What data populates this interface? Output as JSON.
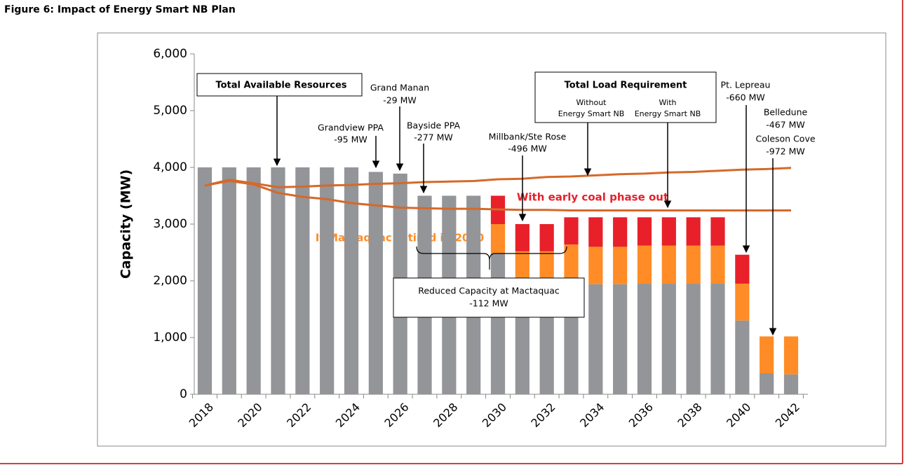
{
  "chart_data": {
    "type": "bar",
    "figure_title": "Figure 6: Impact of Energy Smart NB Plan",
    "y_label": "Capacity  (MW)",
    "categories": [
      "2018",
      null,
      "2020",
      null,
      "2022",
      null,
      "2024",
      null,
      "2026",
      null,
      "2028",
      null,
      "2030",
      null,
      "2032",
      null,
      "2034",
      null,
      "2036",
      null,
      "2038",
      null,
      "2040",
      null,
      "2042"
    ],
    "series": [
      {
        "color": "#939598",
        "values": [
          4000,
          4000,
          4000,
          4000,
          4000,
          4000,
          4000,
          3920,
          3890,
          3500,
          3500,
          3500,
          2480,
          1990,
          1990,
          1990,
          1940,
          1940,
          1950,
          1950,
          1950,
          1950,
          1300,
          370,
          350
        ]
      },
      {
        "color": "#ff8c26",
        "values": [
          null,
          null,
          null,
          null,
          null,
          null,
          null,
          null,
          null,
          null,
          null,
          null,
          520,
          530,
          530,
          650,
          660,
          660,
          670,
          670,
          670,
          670,
          650,
          650,
          670
        ]
      },
      {
        "color": "#e8202a",
        "values": [
          null,
          null,
          null,
          null,
          null,
          null,
          null,
          null,
          null,
          null,
          null,
          null,
          500,
          480,
          480,
          480,
          520,
          520,
          500,
          500,
          500,
          500,
          510,
          null,
          null
        ]
      }
    ],
    "lines": [
      {
        "color": "#d5692a",
        "values": [
          3680,
          3780,
          3720,
          3650,
          3660,
          3680,
          3690,
          3710,
          3720,
          3740,
          3750,
          3760,
          3790,
          3800,
          3830,
          3840,
          3860,
          3880,
          3890,
          3910,
          3920,
          3940,
          3960,
          3970,
          3990
        ]
      },
      {
        "color": "#d5692a",
        "values": [
          3680,
          3760,
          3700,
          3550,
          3480,
          3440,
          3370,
          3330,
          3290,
          3280,
          3270,
          3270,
          3260,
          3250,
          3250,
          3240,
          3240,
          3240,
          3240,
          3240,
          3240,
          3240,
          3240,
          3240,
          3240
        ]
      }
    ],
    "ylim": [
      0,
      6000
    ],
    "yticks": [
      0,
      {
        "value": 1000,
        "label": "1,000"
      },
      {
        "value": 2000,
        "label": "2,000"
      },
      {
        "value": 3000,
        "label": "3,000"
      },
      {
        "value": 4000,
        "label": "4,000"
      },
      {
        "value": 5000,
        "label": "5,000"
      },
      {
        "value": 6000,
        "label": "6,000"
      }
    ],
    "annotations": {
      "total_available": "Total Available Resources",
      "grand_manan": [
        "Grand Manan",
        "-29 MW"
      ],
      "grandview": [
        "Grandview PPA",
        "-95 MW"
      ],
      "bayside": [
        "Bayside PPA",
        "-277 MW"
      ],
      "millbank": [
        "Millbank/Ste Rose",
        "-496 MW"
      ],
      "load_title": "Total Load Requirement",
      "without": [
        "Without",
        "Energy Smart NB"
      ],
      "with": [
        "With",
        "Energy Smart NB"
      ],
      "lepreau": [
        "Pt. Lepreau",
        "-660 MW"
      ],
      "belledune": [
        "Belledune",
        "-467 MW"
      ],
      "coleson": [
        "Coleson Cove",
        "-972 MW"
      ],
      "coal": "With early coal phase out",
      "mactaquac_retired": "If Mactaquac retired in 2030",
      "mactaquac_reduced": [
        "Reduced Capacity at Mactaquac",
        "-112 MW"
      ]
    }
  }
}
